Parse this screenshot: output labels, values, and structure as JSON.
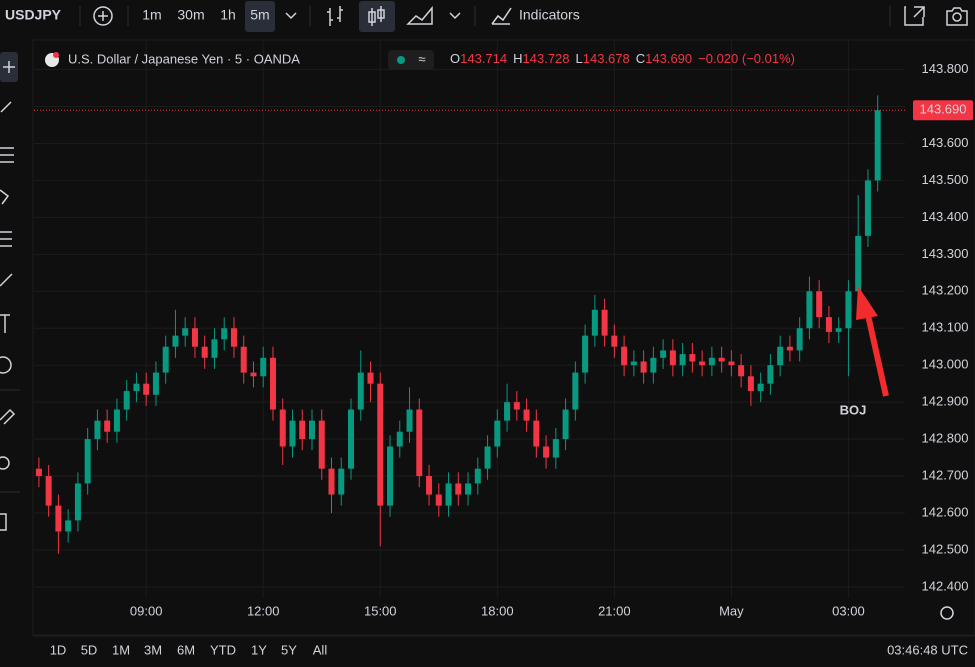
{
  "toolbar": {
    "symbol": "USDJPY",
    "intervals": [
      "1m",
      "30m",
      "1h",
      "5m"
    ],
    "indicators": "Indicators"
  },
  "legend": {
    "title": "U.S. Dollar / Japanese Yen · 5 · OANDA",
    "o_label": "O",
    "open": "143.714",
    "h_label": "H",
    "high": "143.728",
    "l_label": "L",
    "low": "143.678",
    "c_label": "C",
    "close": "143.690",
    "change": "−0.020 (−0.01%)"
  },
  "chart_data": {
    "type": "candlestick",
    "x": [
      6.25,
      6.5,
      6.75,
      7,
      7.25,
      7.5,
      7.75,
      8,
      8.25,
      8.5,
      8.75,
      9,
      9.25,
      9.5,
      9.75,
      10,
      10.25,
      10.5,
      10.75,
      11,
      11.25,
      11.5,
      11.75,
      12,
      12.25,
      12.5,
      12.75,
      13,
      13.25,
      13.5,
      13.75,
      14,
      14.25,
      14.5,
      14.75,
      15,
      15.25,
      15.5,
      15.75,
      16,
      16.25,
      16.5,
      16.75,
      17,
      17.25,
      17.5,
      17.75,
      18,
      18.25,
      18.5,
      18.75,
      19,
      19.25,
      19.5,
      19.75,
      20,
      20.25,
      20.5,
      20.75,
      21,
      21.25,
      21.5,
      21.75,
      22,
      22.25,
      22.5,
      22.75,
      23,
      23.25,
      23.5,
      23.75,
      24,
      24.25,
      24.5,
      24.75,
      25,
      25.25,
      25.5,
      25.75,
      26,
      26.25,
      26.5,
      26.75,
      27,
      27.25,
      27.5,
      27.75
    ],
    "open": [
      142.72,
      142.7,
      142.62,
      142.55,
      142.58,
      142.68,
      142.8,
      142.85,
      142.82,
      142.88,
      142.93,
      142.95,
      142.92,
      142.98,
      143.05,
      143.08,
      143.1,
      143.05,
      143.02,
      143.07,
      143.1,
      143.05,
      142.98,
      142.97,
      143.02,
      142.88,
      142.78,
      142.85,
      142.8,
      142.85,
      142.72,
      142.65,
      142.72,
      142.88,
      142.98,
      142.95,
      142.62,
      142.78,
      142.82,
      142.88,
      142.7,
      142.65,
      142.62,
      142.68,
      142.65,
      142.68,
      142.72,
      142.78,
      142.85,
      142.9,
      142.88,
      142.85,
      142.78,
      142.75,
      142.8,
      142.88,
      142.98,
      143.08,
      143.15,
      143.08,
      143.05,
      143.0,
      143.01,
      142.98,
      143.02,
      143.04,
      143.0,
      143.03,
      143.01,
      143.0,
      143.02,
      143.01,
      143.0,
      142.97,
      142.93,
      142.95,
      143.0,
      143.05,
      143.04,
      143.1,
      143.2,
      143.13,
      143.09,
      143.1,
      143.2,
      143.35,
      143.5
    ],
    "high": [
      142.75,
      142.73,
      142.65,
      142.61,
      142.71,
      142.83,
      142.88,
      142.88,
      142.91,
      142.96,
      142.98,
      142.98,
      143.01,
      143.08,
      143.15,
      143.13,
      143.13,
      143.08,
      143.1,
      143.13,
      143.13,
      143.08,
      143.01,
      143.05,
      143.05,
      142.91,
      142.88,
      142.88,
      142.88,
      142.88,
      142.75,
      142.75,
      142.91,
      143.04,
      143.01,
      142.98,
      142.81,
      142.85,
      142.94,
      142.91,
      142.73,
      142.68,
      142.71,
      142.71,
      142.71,
      142.75,
      142.81,
      142.88,
      142.95,
      142.93,
      142.91,
      142.88,
      142.81,
      142.83,
      142.91,
      143.01,
      143.11,
      143.19,
      143.18,
      143.11,
      143.08,
      143.04,
      143.04,
      143.05,
      143.07,
      143.07,
      143.06,
      143.06,
      143.04,
      143.05,
      143.05,
      143.04,
      143.03,
      143.0,
      142.98,
      143.03,
      143.08,
      143.08,
      143.13,
      143.24,
      143.23,
      143.16,
      143.13,
      143.23,
      143.46,
      143.53,
      143.73
    ],
    "low": [
      142.67,
      142.59,
      142.49,
      142.52,
      142.55,
      142.65,
      142.77,
      142.79,
      142.79,
      142.85,
      142.9,
      142.89,
      142.89,
      142.95,
      143.02,
      143.05,
      143.02,
      142.99,
      142.99,
      143.04,
      143.02,
      142.95,
      142.94,
      142.94,
      142.85,
      142.73,
      142.75,
      142.77,
      142.77,
      142.69,
      142.6,
      142.62,
      142.69,
      142.85,
      142.9,
      142.51,
      142.59,
      142.75,
      142.79,
      142.67,
      142.62,
      142.59,
      142.59,
      142.62,
      142.62,
      142.65,
      142.69,
      142.75,
      142.82,
      142.85,
      142.82,
      142.75,
      142.72,
      142.72,
      142.77,
      142.85,
      142.95,
      143.05,
      143.05,
      143.02,
      142.97,
      142.97,
      142.95,
      142.95,
      142.99,
      142.97,
      142.97,
      142.98,
      142.97,
      142.97,
      142.98,
      142.97,
      142.94,
      142.89,
      142.9,
      142.92,
      142.97,
      143.01,
      143.01,
      143.07,
      143.1,
      143.06,
      143.06,
      142.97,
      143.17,
      143.32,
      143.47
    ],
    "close": [
      142.7,
      142.62,
      142.55,
      142.58,
      142.68,
      142.8,
      142.85,
      142.82,
      142.88,
      142.93,
      142.95,
      142.92,
      142.98,
      143.05,
      143.08,
      143.1,
      143.05,
      143.02,
      143.07,
      143.1,
      143.05,
      142.98,
      142.97,
      143.02,
      142.88,
      142.78,
      142.85,
      142.8,
      142.85,
      142.72,
      142.65,
      142.72,
      142.88,
      142.98,
      142.95,
      142.62,
      142.78,
      142.82,
      142.88,
      142.7,
      142.65,
      142.62,
      142.68,
      142.65,
      142.68,
      142.72,
      142.78,
      142.85,
      142.9,
      142.88,
      142.85,
      142.78,
      142.75,
      142.8,
      142.88,
      142.98,
      143.08,
      143.15,
      143.08,
      143.05,
      143.0,
      143.01,
      142.98,
      143.02,
      143.04,
      143.0,
      143.03,
      143.01,
      143.0,
      143.02,
      143.01,
      143.0,
      142.97,
      142.93,
      142.95,
      143.0,
      143.05,
      143.04,
      143.1,
      143.2,
      143.13,
      143.09,
      143.1,
      143.2,
      143.35,
      143.5,
      143.69
    ],
    "xlim": [
      6.15,
      28.45
    ],
    "ylim": [
      142.37,
      143.88
    ],
    "xticks": [
      {
        "value": 9,
        "label": "09:00"
      },
      {
        "value": 12,
        "label": "12:00"
      },
      {
        "value": 15,
        "label": "15:00"
      },
      {
        "value": 18,
        "label": "18:00"
      },
      {
        "value": 21,
        "label": "21:00"
      },
      {
        "value": 24,
        "label": "May"
      },
      {
        "value": 27,
        "label": "03:00"
      }
    ],
    "yticks": [
      {
        "value": 142.4,
        "label": "142.400"
      },
      {
        "value": 142.5,
        "label": "142.500"
      },
      {
        "value": 142.6,
        "label": "142.600"
      },
      {
        "value": 142.7,
        "label": "142.700"
      },
      {
        "value": 142.8,
        "label": "142.800"
      },
      {
        "value": 142.9,
        "label": "142.900"
      },
      {
        "value": 143.0,
        "label": "143.000"
      },
      {
        "value": 143.1,
        "label": "143.100"
      },
      {
        "value": 143.2,
        "label": "143.200"
      },
      {
        "value": 143.3,
        "label": "143.300"
      },
      {
        "value": 143.4,
        "label": "143.400"
      },
      {
        "value": 143.5,
        "label": "143.500"
      },
      {
        "value": 143.6,
        "label": "143.600"
      },
      {
        "value": 143.7,
        "label": "143.700"
      },
      {
        "value": 143.8,
        "label": "143.800"
      }
    ],
    "grid": true,
    "up_color": "#089981",
    "down_color": "#f23645",
    "last_price": {
      "value": 143.69,
      "label": "143.690"
    },
    "annotation": "BOJ"
  },
  "ranges": [
    "1D",
    "5D",
    "1M",
    "3M",
    "6M",
    "YTD",
    "1Y",
    "5Y",
    "All"
  ],
  "clock": "03:46:48 UTC"
}
